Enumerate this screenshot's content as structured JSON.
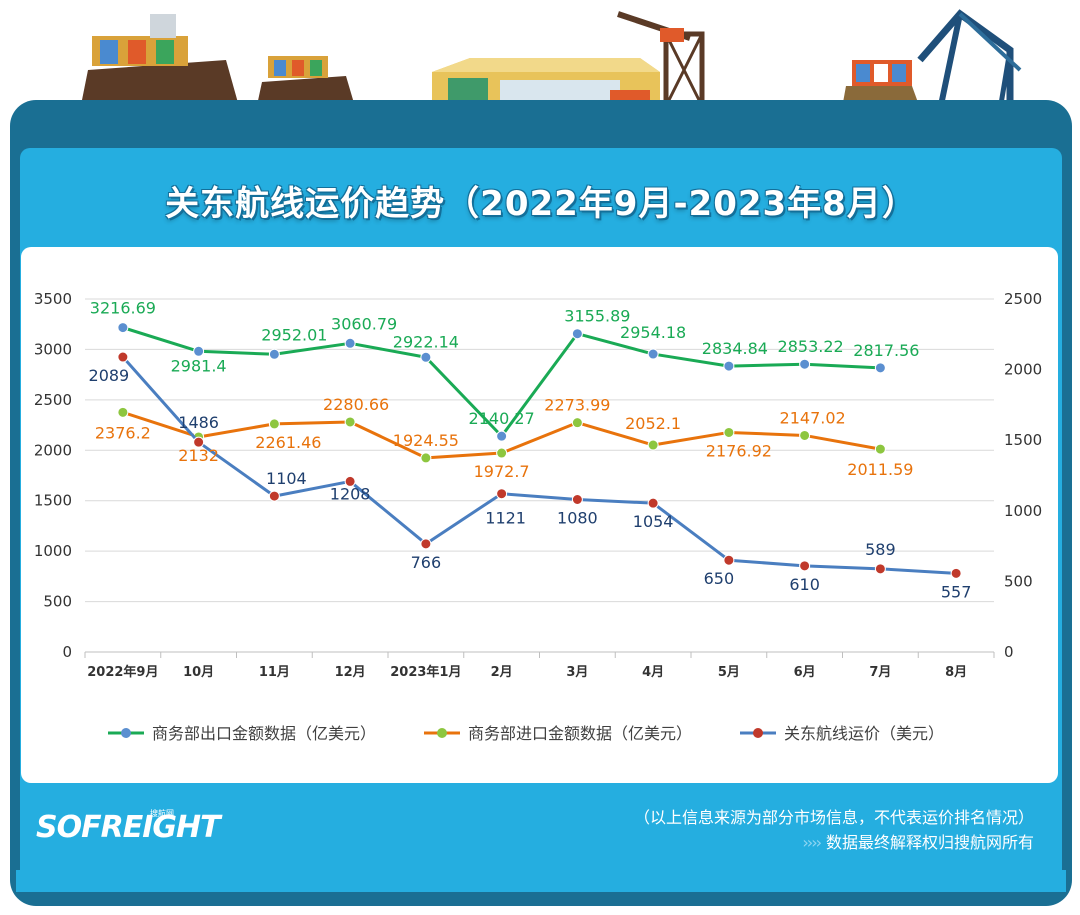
{
  "title": "关东航线运价趋势（2022年9月-2023年8月）",
  "brand": {
    "logo": "SOFREIGHT",
    "logo_sub": "搜航网",
    "watermark": "SOFREIGHT"
  },
  "footer": {
    "note": "（以上信息来源为部分市场信息，不代表运价排名情况）",
    "rights": "数据最终解释权归搜航网所有",
    "rights_prefix": "››››"
  },
  "colors": {
    "frame": "#1a6f93",
    "panel": "#25aee0",
    "plot_bg": "#ffffff",
    "export": "#1aaa55",
    "import": "#e8730c",
    "freight": "#4a7ec0",
    "freight_marker": "#c0392b",
    "export_marker": "#5b8fd0",
    "import_marker": "#8dc63f"
  },
  "chart_data": {
    "type": "line",
    "categories": [
      "2022年9月",
      "10月",
      "11月",
      "12月",
      "2023年1月",
      "2月",
      "3月",
      "4月",
      "5月",
      "6月",
      "7月",
      "8月"
    ],
    "y_left": {
      "min": 0,
      "max": 3500,
      "ticks": [
        0,
        500,
        1000,
        1500,
        2000,
        2500,
        3000,
        3500
      ]
    },
    "y_right": {
      "min": 0,
      "max": 2500,
      "ticks": [
        0,
        500,
        1000,
        1500,
        2000,
        2500
      ]
    },
    "grid": true,
    "legend_position": "bottom",
    "series": [
      {
        "name": "商务部出口金额数据（亿美元）",
        "axis": "left",
        "values": [
          3216.69,
          2981.4,
          2952.01,
          3060.79,
          2922.14,
          2140.27,
          3155.89,
          2954.18,
          2834.84,
          2853.22,
          2817.56,
          null
        ],
        "labels": [
          "3216.69",
          "2981.4",
          "2952.01",
          "3060.79",
          "2922.14",
          "2140.27",
          "3155.89",
          "2954.18",
          "2834.84",
          "2853.22",
          "2817.56",
          ""
        ]
      },
      {
        "name": "商务部进口金额数据（亿美元）",
        "axis": "left",
        "values": [
          2376.2,
          2132,
          2261.46,
          2280.66,
          1924.55,
          1972.7,
          2273.99,
          2052.1,
          2176.92,
          2147.02,
          2011.59,
          null
        ],
        "labels": [
          "2376.2",
          "2132",
          "2261.46",
          "2280.66",
          "1924.55",
          "1972.7",
          "2273.99",
          "2052.1",
          "2176.92",
          "2147.02",
          "2011.59",
          ""
        ]
      },
      {
        "name": "关东航线运价（美元）",
        "axis": "right",
        "values": [
          2089,
          1486,
          1104,
          1208,
          766,
          1121,
          1080,
          1054,
          650,
          610,
          589,
          557
        ],
        "labels": [
          "2089",
          "1486",
          "1104",
          "1208",
          "766",
          "1121",
          "1080",
          "1054",
          "650",
          "610",
          "589",
          "557"
        ]
      }
    ]
  }
}
